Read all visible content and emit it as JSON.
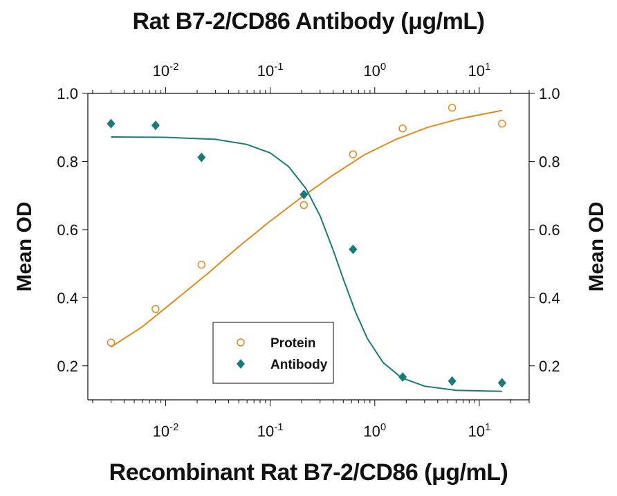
{
  "chart_data": {
    "type": "scatter",
    "title_top": "Rat B7-2/CD86 Antibody (μg/mL)",
    "xlabel": "Recombinant Rat B7-2/CD86 (μg/mL)",
    "ylabel_left": "Mean OD",
    "ylabel_right": "Mean OD",
    "x_scale": "log",
    "xlim": [
      0.0018,
      30
    ],
    "ylim": [
      0.1,
      1.0
    ],
    "x_ticks": [
      {
        "value": 0.01,
        "base": "10",
        "exp": "-2"
      },
      {
        "value": 0.1,
        "base": "10",
        "exp": "-1"
      },
      {
        "value": 1,
        "base": "10",
        "exp": "0"
      },
      {
        "value": 10,
        "base": "10",
        "exp": "1"
      }
    ],
    "y_ticks": [
      "0.2",
      "0.4",
      "0.6",
      "0.8",
      "1.0"
    ],
    "legend_position": "bottom-center",
    "series": [
      {
        "name": "Protein",
        "marker": "open-circle",
        "color": "#e08a1e",
        "points": [
          [
            0.003,
            0.268
          ],
          [
            0.008,
            0.367
          ],
          [
            0.022,
            0.497
          ],
          [
            0.21,
            0.672
          ],
          [
            0.62,
            0.821
          ],
          [
            1.85,
            0.897
          ],
          [
            5.5,
            0.958
          ],
          [
            16.5,
            0.911
          ]
        ],
        "fit": [
          [
            0.003,
            0.255
          ],
          [
            0.006,
            0.315
          ],
          [
            0.012,
            0.39
          ],
          [
            0.025,
            0.47
          ],
          [
            0.05,
            0.55
          ],
          [
            0.1,
            0.625
          ],
          [
            0.2,
            0.695
          ],
          [
            0.4,
            0.76
          ],
          [
            0.8,
            0.82
          ],
          [
            1.6,
            0.865
          ],
          [
            3.2,
            0.9
          ],
          [
            6.4,
            0.925
          ],
          [
            16.5,
            0.95
          ]
        ]
      },
      {
        "name": "Antibody",
        "marker": "filled-diamond",
        "color": "#1a7a76",
        "points": [
          [
            0.003,
            0.911
          ],
          [
            0.008,
            0.906
          ],
          [
            0.022,
            0.812
          ],
          [
            0.21,
            0.703
          ],
          [
            0.62,
            0.542
          ],
          [
            1.85,
            0.167
          ],
          [
            5.5,
            0.155
          ],
          [
            16.5,
            0.15
          ]
        ],
        "fit": [
          [
            0.003,
            0.872
          ],
          [
            0.01,
            0.871
          ],
          [
            0.03,
            0.865
          ],
          [
            0.06,
            0.85
          ],
          [
            0.1,
            0.825
          ],
          [
            0.15,
            0.785
          ],
          [
            0.22,
            0.72
          ],
          [
            0.3,
            0.64
          ],
          [
            0.4,
            0.54
          ],
          [
            0.5,
            0.455
          ],
          [
            0.65,
            0.36
          ],
          [
            0.85,
            0.28
          ],
          [
            1.2,
            0.21
          ],
          [
            1.8,
            0.165
          ],
          [
            3,
            0.14
          ],
          [
            6,
            0.128
          ],
          [
            16.5,
            0.125
          ]
        ]
      }
    ]
  }
}
